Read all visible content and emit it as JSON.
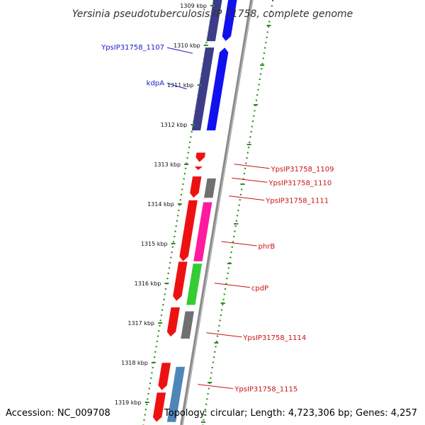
{
  "title": "Yersinia pseudotuberculosis IP 31758, complete genome",
  "accession": "Accession: NC_009708",
  "topology": "Topology: circular; Length: 4,723,306 bp; Genes: 4,257",
  "colors": {
    "backbone": "#8a8a8a",
    "ruler": "#2e8b22",
    "forward_label": "#1a1acc",
    "reverse_label": "#cc1111",
    "red_gene": "#ee1111",
    "blue_gene": "#1111ee",
    "purple_gene": "#3c3c88",
    "gray_gene": "#707070",
    "magenta_gene": "#ff1aa0",
    "green_gene": "#33cc33",
    "steelblue_gene": "#4f86b8"
  },
  "map": {
    "range_kbp": [
      1309,
      1319
    ],
    "ticks": [
      {
        "label": "1309 kbp",
        "kbp": 1309
      },
      {
        "label": "1310 kbp",
        "kbp": 1310
      },
      {
        "label": "1311 kbp",
        "kbp": 1311
      },
      {
        "label": "1312 kbp",
        "kbp": 1312
      },
      {
        "label": "1313 kbp",
        "kbp": 1313
      },
      {
        "label": "1314 kbp",
        "kbp": 1314
      },
      {
        "label": "1315 kbp",
        "kbp": 1315
      },
      {
        "label": "1316 kbp",
        "kbp": 1316
      },
      {
        "label": "1317 kbp",
        "kbp": 1317
      },
      {
        "label": "1318 kbp",
        "kbp": 1318
      },
      {
        "label": "1319 kbp",
        "kbp": 1319
      }
    ],
    "labels": [
      {
        "text": "YpsIP31758_1107",
        "strand": "forward",
        "kbp": 1310.2
      },
      {
        "text": "kdpA",
        "strand": "forward",
        "kbp": 1311.1
      },
      {
        "text": "YpsIP31758_1109",
        "strand": "reverse",
        "kbp": 1313.05
      },
      {
        "text": "YpsIP31758_1110",
        "strand": "reverse",
        "kbp": 1313.4
      },
      {
        "text": "YpsIP31758_1111",
        "strand": "reverse",
        "kbp": 1313.85
      },
      {
        "text": "phrB",
        "strand": "reverse",
        "kbp": 1315.0
      },
      {
        "text": "cpdP",
        "strand": "reverse",
        "kbp": 1316.05
      },
      {
        "text": "YpsIP31758_1114",
        "strand": "reverse",
        "kbp": 1317.3
      },
      {
        "text": "YpsIP31758_1115",
        "strand": "reverse",
        "kbp": 1318.6
      }
    ],
    "features": [
      {
        "lane": "purple",
        "start": 1308.6,
        "end": 1309.9,
        "dir": 0,
        "color": "purple_gene"
      },
      {
        "lane": "blue",
        "start": 1308.6,
        "end": 1309.9,
        "dir": 1,
        "color": "blue_gene"
      },
      {
        "lane": "purple",
        "start": 1310.05,
        "end": 1312.15,
        "dir": 0,
        "color": "purple_gene"
      },
      {
        "lane": "blue",
        "start": 1310.05,
        "end": 1312.15,
        "dir": -1,
        "color": "blue_gene"
      },
      {
        "lane": "red",
        "start": 1312.7,
        "end": 1312.95,
        "dir": 1,
        "color": "red_gene"
      },
      {
        "lane": "red",
        "start": 1313.05,
        "end": 1313.15,
        "dir": 1,
        "color": "red_gene"
      },
      {
        "lane": "red",
        "start": 1313.3,
        "end": 1313.85,
        "dir": 1,
        "color": "red_gene"
      },
      {
        "lane": "gray",
        "start": 1313.35,
        "end": 1313.85,
        "dir": 0,
        "color": "gray_gene"
      },
      {
        "lane": "red",
        "start": 1313.9,
        "end": 1315.45,
        "dir": 1,
        "color": "red_gene"
      },
      {
        "lane": "magenta",
        "start": 1313.95,
        "end": 1315.45,
        "dir": 0,
        "color": "magenta_gene"
      },
      {
        "lane": "red",
        "start": 1315.45,
        "end": 1316.45,
        "dir": 1,
        "color": "red_gene"
      },
      {
        "lane": "green",
        "start": 1315.5,
        "end": 1316.55,
        "dir": 0,
        "color": "green_gene"
      },
      {
        "lane": "red",
        "start": 1316.6,
        "end": 1317.35,
        "dir": 1,
        "color": "red_gene"
      },
      {
        "lane": "gray",
        "start": 1316.7,
        "end": 1317.4,
        "dir": 0,
        "color": "gray_gene"
      },
      {
        "lane": "red",
        "start": 1318.0,
        "end": 1318.7,
        "dir": 1,
        "color": "red_gene"
      },
      {
        "lane": "steelblue",
        "start": 1318.1,
        "end": 1319.5,
        "dir": 0,
        "color": "steelblue_gene"
      },
      {
        "lane": "red",
        "start": 1318.75,
        "end": 1319.5,
        "dir": 1,
        "color": "red_gene"
      }
    ]
  }
}
